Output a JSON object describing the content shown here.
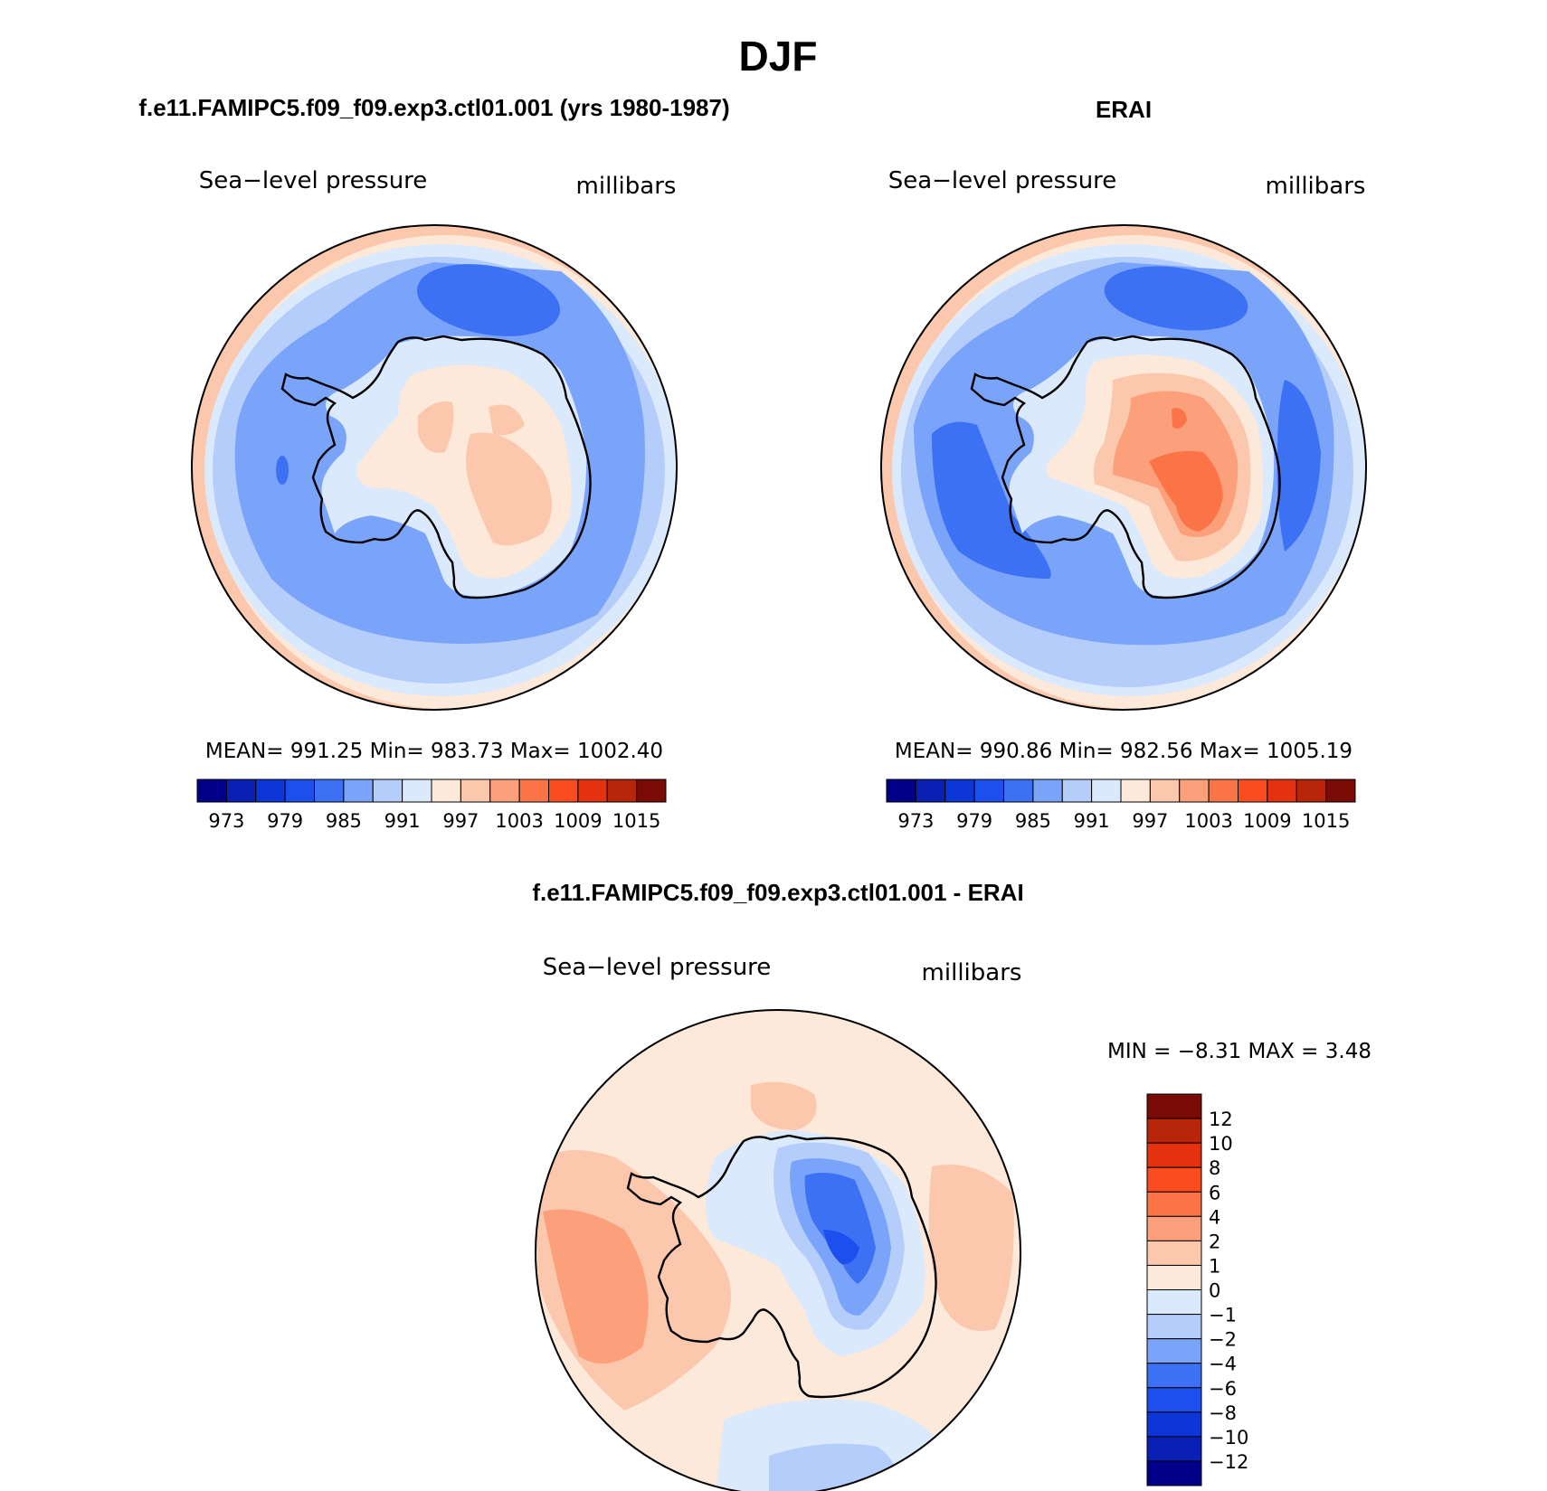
{
  "figure_title": "DJF",
  "panels": [
    {
      "heading": "f.e11.FAMIPC5.f09_f09.exp3.ctl01.001 (yrs 1980-1987)",
      "variable": "Sea−level pressure",
      "units": "millibars",
      "stats": {
        "mean_label": "MEAN=",
        "mean": "991.25",
        "min_label": "Min=",
        "min": "983.73",
        "max_label": "Max=",
        "max": "1002.40"
      }
    },
    {
      "heading": "ERAI",
      "variable": "Sea−level pressure",
      "units": "millibars",
      "stats": {
        "mean_label": "MEAN=",
        "mean": "990.86",
        "min_label": "Min=",
        "min": "982.56",
        "max_label": "Max=",
        "max": "1005.19"
      }
    },
    {
      "heading": "f.e11.FAMIPC5.f09_f09.exp3.ctl01.001 - ERAI",
      "variable": "Sea−level pressure",
      "units": "millibars",
      "stats": {
        "min_label": "MIN =",
        "min": "−8.31",
        "max_label": "MAX =",
        "max": "3.48"
      }
    }
  ],
  "colorbar_abs": {
    "colors": [
      "#00008b",
      "#0a1fb4",
      "#0d36d8",
      "#1c4fee",
      "#3d71f4",
      "#7aa3fa",
      "#b5cdfb",
      "#dbe9fc",
      "#fde9da",
      "#fcc8ad",
      "#fba07a",
      "#fb7447",
      "#fb4c1f",
      "#e5320e",
      "#b82508",
      "#7a0a06"
    ],
    "labels": [
      "973",
      "979",
      "985",
      "991",
      "997",
      "1003",
      "1009",
      "1015"
    ]
  },
  "colorbar_diff": {
    "colors": [
      "#00008b",
      "#0a1fb4",
      "#0d36d8",
      "#1c4fee",
      "#3d71f4",
      "#7aa3fa",
      "#b5cdfb",
      "#dbe9fc",
      "#fde9da",
      "#fcc8ad",
      "#fba07a",
      "#fb7447",
      "#fb4c1f",
      "#e5320e",
      "#b82508",
      "#7a0a06"
    ],
    "labels": [
      "−12",
      "−10",
      "−8",
      "−6",
      "−4",
      "−2",
      "−1",
      "0",
      "1",
      "2",
      "4",
      "6",
      "8",
      "10",
      "12"
    ]
  }
}
